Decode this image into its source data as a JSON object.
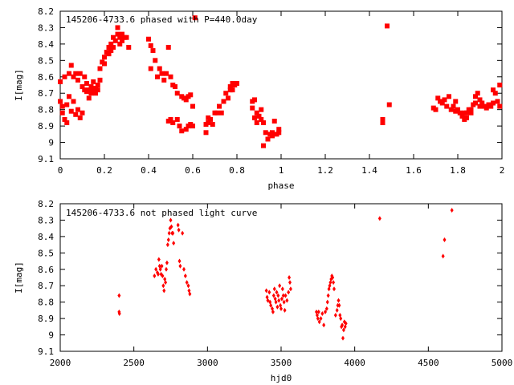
{
  "chart_data": [
    {
      "type": "scatter",
      "title": "145206-4733.6 phased with P=440.0day",
      "xlabel": "phase",
      "ylabel": "I[mag]",
      "xlim": [
        0,
        2
      ],
      "ylim": [
        8.2,
        9.1
      ],
      "y_inverted": true,
      "grid": false,
      "x_ticks": [
        "0",
        "0.2",
        "0.4",
        "0.6",
        "0.8",
        "1",
        "1.2",
        "1.4",
        "1.6",
        "1.8",
        "2"
      ],
      "y_ticks": [
        "8.2",
        "8.3",
        "8.4",
        "8.5",
        "8.6",
        "8.7",
        "8.8",
        "8.9",
        "9",
        "9.1"
      ],
      "marker_color": "#ff0000",
      "points": [
        [
          0.0,
          8.63
        ],
        [
          0.0,
          8.75
        ],
        [
          0.01,
          8.78
        ],
        [
          0.01,
          8.82
        ],
        [
          0.02,
          8.86
        ],
        [
          0.02,
          8.6
        ],
        [
          0.03,
          8.77
        ],
        [
          0.03,
          8.88
        ],
        [
          0.04,
          8.72
        ],
        [
          0.04,
          8.58
        ],
        [
          0.05,
          8.53
        ],
        [
          0.05,
          8.81
        ],
        [
          0.06,
          8.75
        ],
        [
          0.06,
          8.6
        ],
        [
          0.07,
          8.83
        ],
        [
          0.07,
          8.58
        ],
        [
          0.08,
          8.8
        ],
        [
          0.08,
          8.62
        ],
        [
          0.09,
          8.85
        ],
        [
          0.09,
          8.58
        ],
        [
          0.1,
          8.82
        ],
        [
          0.1,
          8.66
        ],
        [
          0.11,
          8.6
        ],
        [
          0.11,
          8.68
        ],
        [
          0.12,
          8.64
        ],
        [
          0.12,
          8.69
        ],
        [
          0.13,
          8.68
        ],
        [
          0.13,
          8.73
        ],
        [
          0.14,
          8.66
        ],
        [
          0.14,
          8.7
        ],
        [
          0.15,
          8.68
        ],
        [
          0.15,
          8.63
        ],
        [
          0.16,
          8.67
        ],
        [
          0.16,
          8.7
        ],
        [
          0.17,
          8.68
        ],
        [
          0.17,
          8.65
        ],
        [
          0.18,
          8.62
        ],
        [
          0.18,
          8.55
        ],
        [
          0.19,
          8.51
        ],
        [
          0.2,
          8.48
        ],
        [
          0.2,
          8.52
        ],
        [
          0.21,
          8.45
        ],
        [
          0.22,
          8.42
        ],
        [
          0.22,
          8.46
        ],
        [
          0.23,
          8.4
        ],
        [
          0.23,
          8.44
        ],
        [
          0.24,
          8.36
        ],
        [
          0.24,
          8.42
        ],
        [
          0.25,
          8.38
        ],
        [
          0.26,
          8.34
        ],
        [
          0.26,
          8.3
        ],
        [
          0.27,
          8.36
        ],
        [
          0.27,
          8.4
        ],
        [
          0.28,
          8.34
        ],
        [
          0.28,
          8.38
        ],
        [
          0.29,
          8.36
        ],
        [
          0.3,
          8.36
        ],
        [
          0.31,
          8.42
        ],
        [
          0.4,
          8.37
        ],
        [
          0.41,
          8.41
        ],
        [
          0.41,
          8.55
        ],
        [
          0.42,
          8.44
        ],
        [
          0.43,
          8.5
        ],
        [
          0.44,
          8.6
        ],
        [
          0.45,
          8.55
        ],
        [
          0.46,
          8.58
        ],
        [
          0.47,
          8.62
        ],
        [
          0.48,
          8.58
        ],
        [
          0.49,
          8.42
        ],
        [
          0.49,
          8.87
        ],
        [
          0.5,
          8.6
        ],
        [
          0.5,
          8.86
        ],
        [
          0.51,
          8.65
        ],
        [
          0.51,
          8.88
        ],
        [
          0.52,
          8.66
        ],
        [
          0.53,
          8.86
        ],
        [
          0.53,
          8.7
        ],
        [
          0.54,
          8.9
        ],
        [
          0.55,
          8.93
        ],
        [
          0.55,
          8.72
        ],
        [
          0.56,
          8.73
        ],
        [
          0.57,
          8.92
        ],
        [
          0.57,
          8.74
        ],
        [
          0.58,
          8.9
        ],
        [
          0.58,
          8.72
        ],
        [
          0.59,
          8.89
        ],
        [
          0.59,
          8.71
        ],
        [
          0.6,
          8.9
        ],
        [
          0.6,
          8.78
        ],
        [
          0.61,
          8.24
        ],
        [
          0.66,
          8.89
        ],
        [
          0.66,
          8.94
        ],
        [
          0.67,
          8.88
        ],
        [
          0.67,
          8.85
        ],
        [
          0.68,
          8.86
        ],
        [
          0.69,
          8.89
        ],
        [
          0.7,
          8.82
        ],
        [
          0.71,
          8.82
        ],
        [
          0.72,
          8.78
        ],
        [
          0.73,
          8.82
        ],
        [
          0.74,
          8.75
        ],
        [
          0.75,
          8.7
        ],
        [
          0.76,
          8.73
        ],
        [
          0.77,
          8.68
        ],
        [
          0.77,
          8.66
        ],
        [
          0.78,
          8.64
        ],
        [
          0.78,
          8.68
        ],
        [
          0.79,
          8.65
        ],
        [
          0.8,
          8.64
        ],
        [
          0.87,
          8.75
        ],
        [
          0.87,
          8.79
        ],
        [
          0.88,
          8.74
        ],
        [
          0.88,
          8.85
        ],
        [
          0.89,
          8.82
        ],
        [
          0.89,
          8.88
        ],
        [
          0.9,
          8.84
        ],
        [
          0.91,
          8.8
        ],
        [
          0.91,
          8.86
        ],
        [
          0.92,
          8.88
        ],
        [
          0.92,
          9.02
        ],
        [
          0.93,
          8.94
        ],
        [
          0.94,
          8.98
        ],
        [
          0.95,
          8.95
        ],
        [
          0.96,
          8.94
        ],
        [
          0.96,
          8.96
        ],
        [
          0.97,
          8.87
        ],
        [
          0.98,
          8.95
        ],
        [
          0.99,
          8.92
        ],
        [
          0.99,
          8.94
        ],
        [
          1.46,
          8.86
        ],
        [
          1.46,
          8.88
        ],
        [
          1.48,
          8.29
        ],
        [
          1.49,
          8.77
        ],
        [
          1.69,
          8.79
        ],
        [
          1.7,
          8.8
        ],
        [
          1.71,
          8.73
        ],
        [
          1.72,
          8.75
        ],
        [
          1.73,
          8.76
        ],
        [
          1.74,
          8.74
        ],
        [
          1.75,
          8.78
        ],
        [
          1.76,
          8.72
        ],
        [
          1.77,
          8.8
        ],
        [
          1.78,
          8.78
        ],
        [
          1.79,
          8.81
        ],
        [
          1.79,
          8.75
        ],
        [
          1.8,
          8.8
        ],
        [
          1.81,
          8.82
        ],
        [
          1.82,
          8.83
        ],
        [
          1.82,
          8.84
        ],
        [
          1.83,
          8.86
        ],
        [
          1.83,
          8.82
        ],
        [
          1.84,
          8.85
        ],
        [
          1.84,
          8.82
        ],
        [
          1.85,
          8.8
        ],
        [
          1.86,
          8.82
        ],
        [
          1.86,
          8.8
        ],
        [
          1.87,
          8.77
        ],
        [
          1.88,
          8.72
        ],
        [
          1.88,
          8.76
        ],
        [
          1.89,
          8.7
        ],
        [
          1.9,
          8.74
        ],
        [
          1.9,
          8.78
        ],
        [
          1.91,
          8.76
        ],
        [
          1.92,
          8.78
        ],
        [
          1.93,
          8.79
        ],
        [
          1.94,
          8.77
        ],
        [
          1.95,
          8.78
        ],
        [
          1.96,
          8.76
        ],
        [
          1.96,
          8.68
        ],
        [
          1.97,
          8.7
        ],
        [
          1.98,
          8.75
        ],
        [
          1.99,
          8.78
        ],
        [
          1.99,
          8.65
        ]
      ]
    },
    {
      "type": "scatter",
      "title": "145206-4733.6 not phased light curve",
      "xlabel": "hjd0",
      "ylabel": "I[mag]",
      "xlim": [
        2000,
        5000
      ],
      "ylim": [
        8.2,
        9.1
      ],
      "y_inverted": true,
      "grid": false,
      "x_ticks": [
        "2000",
        "2500",
        "3000",
        "3500",
        "4000",
        "4500",
        "5000"
      ],
      "y_ticks": [
        "8.2",
        "8.3",
        "8.4",
        "8.5",
        "8.6",
        "8.7",
        "8.8",
        "8.9",
        "9",
        "9.1"
      ],
      "marker_color": "#ff0000",
      "points": [
        [
          2400,
          8.76
        ],
        [
          2400,
          8.86
        ],
        [
          2402,
          8.87
        ],
        [
          2640,
          8.64
        ],
        [
          2650,
          8.6
        ],
        [
          2660,
          8.62
        ],
        [
          2665,
          8.63
        ],
        [
          2670,
          8.54
        ],
        [
          2675,
          8.58
        ],
        [
          2680,
          8.6
        ],
        [
          2685,
          8.63
        ],
        [
          2690,
          8.58
        ],
        [
          2695,
          8.64
        ],
        [
          2700,
          8.7
        ],
        [
          2705,
          8.73
        ],
        [
          2710,
          8.66
        ],
        [
          2715,
          8.68
        ],
        [
          2720,
          8.6
        ],
        [
          2725,
          8.56
        ],
        [
          2730,
          8.45
        ],
        [
          2735,
          8.42
        ],
        [
          2740,
          8.38
        ],
        [
          2745,
          8.35
        ],
        [
          2750,
          8.3
        ],
        [
          2755,
          8.34
        ],
        [
          2760,
          8.38
        ],
        [
          2765,
          8.38
        ],
        [
          2770,
          8.44
        ],
        [
          2800,
          8.33
        ],
        [
          2805,
          8.36
        ],
        [
          2810,
          8.55
        ],
        [
          2815,
          8.58
        ],
        [
          2830,
          8.38
        ],
        [
          2840,
          8.6
        ],
        [
          2850,
          8.64
        ],
        [
          2860,
          8.68
        ],
        [
          2870,
          8.7
        ],
        [
          2875,
          8.73
        ],
        [
          2880,
          8.75
        ],
        [
          3400,
          8.73
        ],
        [
          3405,
          8.77
        ],
        [
          3410,
          8.79
        ],
        [
          3420,
          8.74
        ],
        [
          3425,
          8.8
        ],
        [
          3430,
          8.82
        ],
        [
          3440,
          8.84
        ],
        [
          3445,
          8.86
        ],
        [
          3450,
          8.76
        ],
        [
          3455,
          8.72
        ],
        [
          3460,
          8.78
        ],
        [
          3465,
          8.8
        ],
        [
          3470,
          8.74
        ],
        [
          3475,
          8.83
        ],
        [
          3480,
          8.76
        ],
        [
          3485,
          8.79
        ],
        [
          3490,
          8.7
        ],
        [
          3495,
          8.82
        ],
        [
          3500,
          8.84
        ],
        [
          3505,
          8.78
        ],
        [
          3510,
          8.72
        ],
        [
          3515,
          8.76
        ],
        [
          3520,
          8.8
        ],
        [
          3525,
          8.85
        ],
        [
          3530,
          8.76
        ],
        [
          3540,
          8.79
        ],
        [
          3550,
          8.74
        ],
        [
          3555,
          8.65
        ],
        [
          3560,
          8.68
        ],
        [
          3565,
          8.72
        ],
        [
          3740,
          8.86
        ],
        [
          3745,
          8.88
        ],
        [
          3750,
          8.9
        ],
        [
          3755,
          8.86
        ],
        [
          3760,
          8.92
        ],
        [
          3770,
          8.9
        ],
        [
          3780,
          8.87
        ],
        [
          3790,
          8.94
        ],
        [
          3800,
          8.86
        ],
        [
          3810,
          8.84
        ],
        [
          3815,
          8.8
        ],
        [
          3820,
          8.76
        ],
        [
          3825,
          8.72
        ],
        [
          3830,
          8.7
        ],
        [
          3835,
          8.68
        ],
        [
          3840,
          8.66
        ],
        [
          3845,
          8.64
        ],
        [
          3850,
          8.65
        ],
        [
          3855,
          8.68
        ],
        [
          3860,
          8.72
        ],
        [
          3870,
          8.88
        ],
        [
          3880,
          8.85
        ],
        [
          3885,
          8.82
        ],
        [
          3890,
          8.79
        ],
        [
          3895,
          8.82
        ],
        [
          3900,
          8.88
        ],
        [
          3905,
          8.9
        ],
        [
          3910,
          8.95
        ],
        [
          3915,
          8.94
        ],
        [
          3920,
          9.02
        ],
        [
          3925,
          8.97
        ],
        [
          3930,
          8.92
        ],
        [
          3935,
          8.95
        ],
        [
          3940,
          8.93
        ],
        [
          4170,
          8.29
        ],
        [
          4600,
          8.52
        ],
        [
          4610,
          8.42
        ],
        [
          4660,
          8.24
        ]
      ]
    }
  ]
}
